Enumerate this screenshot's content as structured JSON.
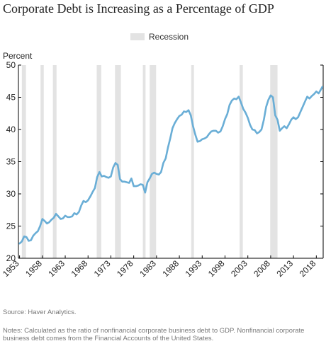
{
  "chart_data": {
    "type": "line",
    "title": "Corporate Debt is Increasing as a Percentage of GDP",
    "ylabel": "Percent",
    "xlabel": "",
    "ylim": [
      20,
      50
    ],
    "yticks": [
      20,
      25,
      30,
      35,
      40,
      45,
      50
    ],
    "xlim": [
      1952.75,
      2019.5
    ],
    "xticks": [
      1953,
      1958,
      1963,
      1968,
      1973,
      1978,
      1983,
      1988,
      1993,
      1998,
      2003,
      2008,
      2013,
      2018
    ],
    "legend": {
      "label": "Recession",
      "placement": "top-center"
    },
    "colors": {
      "line": "#6aaed6",
      "recession": "#e3e3e3",
      "axis": "#000000"
    },
    "recessions": [
      [
        1953.5,
        1954.4
      ],
      [
        1957.6,
        1958.3
      ],
      [
        1960.3,
        1961.1
      ],
      [
        1969.9,
        1970.9
      ],
      [
        1973.9,
        1975.2
      ],
      [
        1980.0,
        1980.6
      ],
      [
        1981.5,
        1982.9
      ],
      [
        1990.6,
        1991.2
      ],
      [
        2001.2,
        2001.9
      ],
      [
        2007.9,
        2009.5
      ]
    ],
    "series": [
      {
        "x": [
          1953.0,
          1953.5,
          1954.0,
          1954.5,
          1955.0,
          1955.5,
          1956.0,
          1956.5,
          1957.0,
          1957.5,
          1958.0,
          1958.5,
          1959.0,
          1959.5,
          1960.0,
          1960.5,
          1961.0,
          1961.5,
          1962.0,
          1962.5,
          1963.0,
          1963.5,
          1964.0,
          1964.5,
          1965.0,
          1965.5,
          1966.0,
          1966.5,
          1967.0,
          1967.5,
          1968.0,
          1968.5,
          1969.0,
          1969.5,
          1970.0,
          1970.5,
          1971.0,
          1971.5,
          1972.0,
          1972.5,
          1973.0,
          1973.5,
          1974.0,
          1974.5,
          1975.0,
          1975.5,
          1976.0,
          1976.5,
          1977.0,
          1977.5,
          1978.0,
          1978.5,
          1979.0,
          1979.5,
          1980.0,
          1980.5,
          1981.0,
          1981.5,
          1982.0,
          1982.5,
          1983.0,
          1983.5,
          1984.0,
          1984.5,
          1985.0,
          1985.5,
          1986.0,
          1986.5,
          1987.0,
          1987.5,
          1988.0,
          1988.5,
          1989.0,
          1989.5,
          1990.0,
          1990.5,
          1991.0,
          1991.5,
          1992.0,
          1992.5,
          1993.0,
          1993.5,
          1994.0,
          1994.5,
          1995.0,
          1995.5,
          1996.0,
          1996.5,
          1997.0,
          1997.5,
          1998.0,
          1998.5,
          1999.0,
          1999.5,
          2000.0,
          2000.5,
          2001.0,
          2001.5,
          2002.0,
          2002.5,
          2003.0,
          2003.5,
          2004.0,
          2004.5,
          2005.0,
          2005.5,
          2006.0,
          2006.5,
          2007.0,
          2007.5,
          2008.0,
          2008.5,
          2009.0,
          2009.5,
          2010.0,
          2010.5,
          2011.0,
          2011.5,
          2012.0,
          2012.5,
          2013.0,
          2013.5,
          2014.0,
          2014.5,
          2015.0,
          2015.5,
          2016.0,
          2016.5,
          2017.0,
          2017.5,
          2018.0,
          2018.5,
          2019.0,
          2019.3
        ],
        "values": [
          22.3,
          22.6,
          23.4,
          23.3,
          22.7,
          22.8,
          23.5,
          23.9,
          24.2,
          25.0,
          26.1,
          25.8,
          25.4,
          25.6,
          26.0,
          26.3,
          26.9,
          26.5,
          26.1,
          26.2,
          26.6,
          26.4,
          26.4,
          26.5,
          27.0,
          26.8,
          27.2,
          28.2,
          28.9,
          28.7,
          29.0,
          29.6,
          30.3,
          30.9,
          32.6,
          33.4,
          32.7,
          32.8,
          32.6,
          32.5,
          32.7,
          34.1,
          34.8,
          34.5,
          32.3,
          31.9,
          31.9,
          31.8,
          31.7,
          32.4,
          31.2,
          31.2,
          31.3,
          31.5,
          31.4,
          30.2,
          31.8,
          32.4,
          33.1,
          33.3,
          33.1,
          33.0,
          33.4,
          34.8,
          35.5,
          37.2,
          38.6,
          40.2,
          41.0,
          41.6,
          42.1,
          42.3,
          42.8,
          42.7,
          43.0,
          42.2,
          40.5,
          39.2,
          38.1,
          38.2,
          38.5,
          38.6,
          38.8,
          39.3,
          39.7,
          39.8,
          39.8,
          39.5,
          39.7,
          40.5,
          41.6,
          42.4,
          43.8,
          44.5,
          44.8,
          44.7,
          45.1,
          44.2,
          43.2,
          42.6,
          41.8,
          40.7,
          40.0,
          39.9,
          39.4,
          39.6,
          40.0,
          41.5,
          43.5,
          44.6,
          45.3,
          45.0,
          42.2,
          41.5,
          39.8,
          40.2,
          40.5,
          40.2,
          40.8,
          41.5,
          41.9,
          41.6,
          41.9,
          42.7,
          43.5,
          44.3,
          45.1,
          44.8,
          45.2,
          45.5,
          45.9,
          45.6,
          46.2,
          46.6
        ]
      }
    ],
    "source": "Source: Haver Analytics.",
    "notes": "Notes: Calculated as the ratio of nonfinancial corporate business debt to GDP. Nonfinancial corporate business debt comes from the Financial Accounts of the United States."
  }
}
